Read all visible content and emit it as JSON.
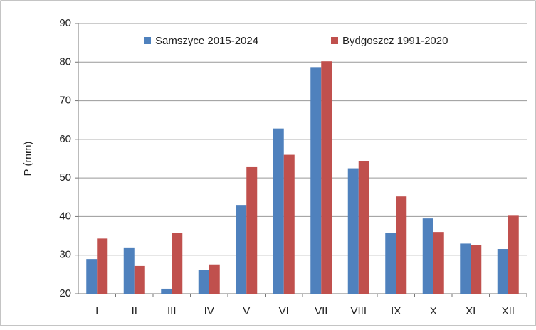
{
  "chart_data": {
    "type": "bar",
    "y_label": "P (mm)",
    "categories": [
      "I",
      "II",
      "III",
      "IV",
      "V",
      "VI",
      "VII",
      "VIII",
      "IX",
      "X",
      "XI",
      "XII"
    ],
    "series": [
      {
        "name": "Samszyce 2015-2024",
        "color": "#4f81bd",
        "values": [
          29,
          32,
          21.3,
          26.2,
          43,
          62.8,
          78.7,
          52.5,
          35.8,
          39.5,
          33,
          31.6
        ]
      },
      {
        "name": "Bydgoszcz 1991-2020",
        "color": "#c0504d",
        "values": [
          34.3,
          27.2,
          35.7,
          27.6,
          52.8,
          56,
          80.2,
          54.3,
          45.2,
          36,
          32.6,
          40.2
        ]
      }
    ],
    "ylim": [
      20,
      90
    ],
    "yticks": [
      20,
      30,
      40,
      50,
      60,
      70,
      80,
      90
    ],
    "grid": true,
    "legend": "top"
  }
}
